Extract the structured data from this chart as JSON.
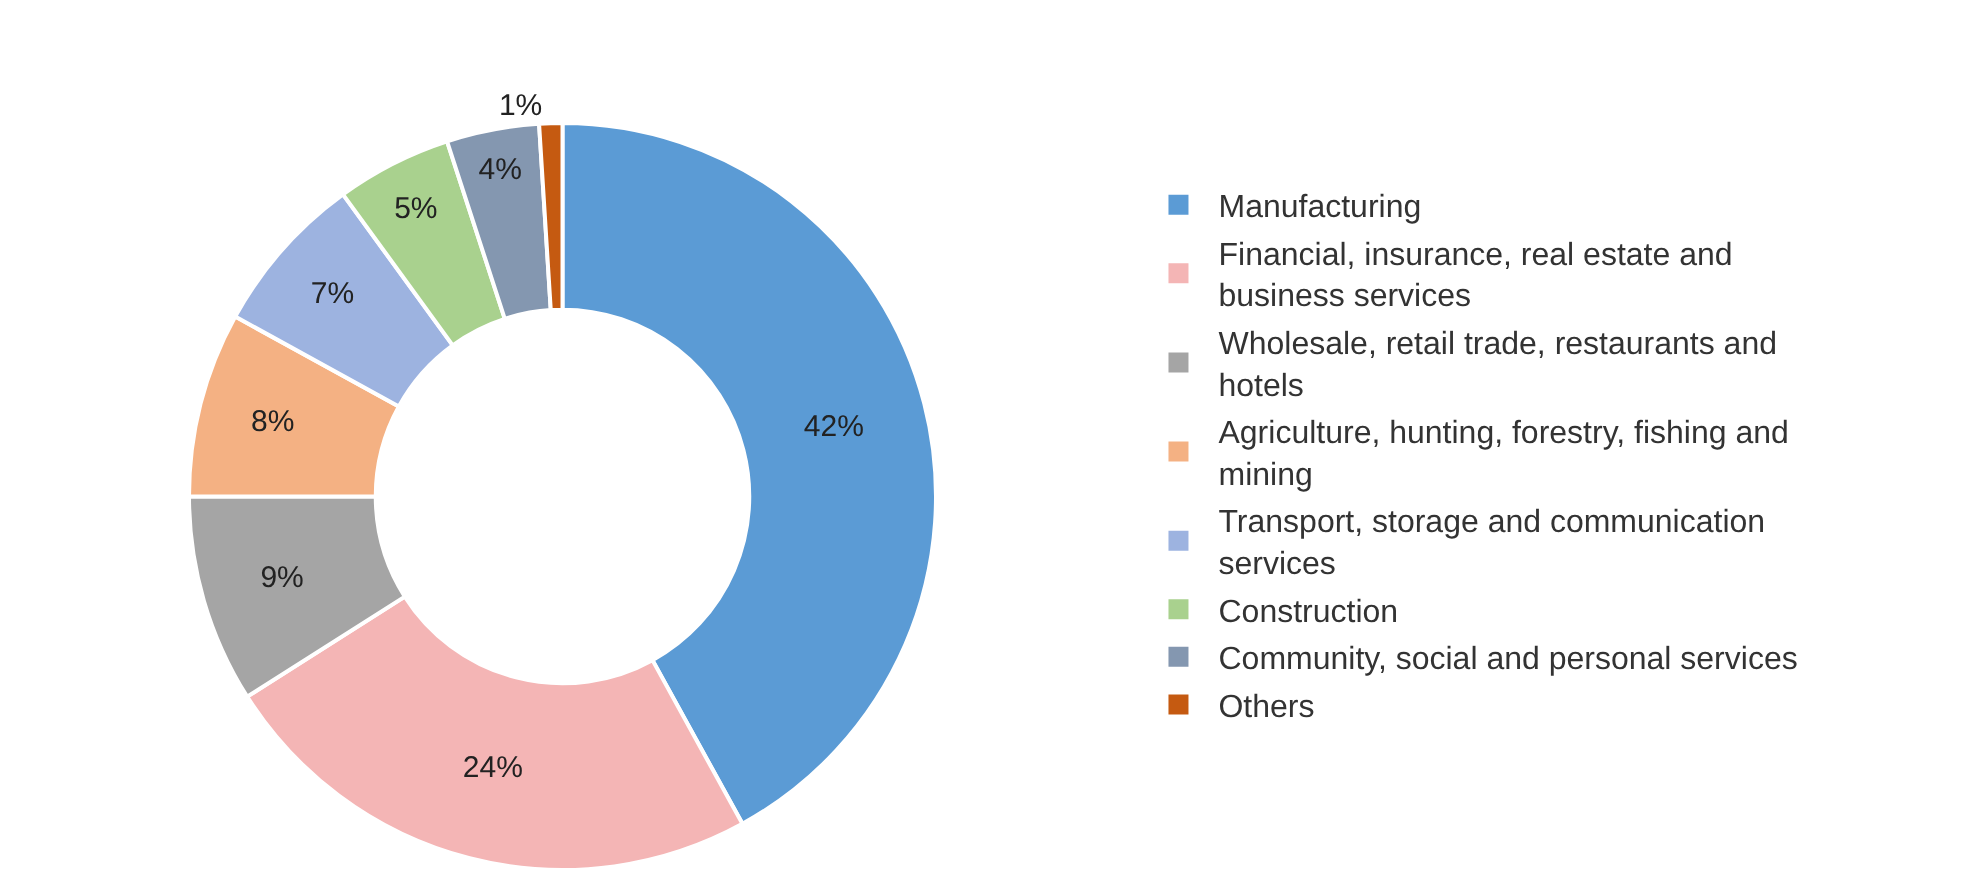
{
  "chart_data": {
    "type": "donut",
    "categories": [
      "Manufacturing",
      "Financial, insurance, real estate and business services",
      "Wholesale, retail trade, restaurants and hotels",
      "Agriculture, hunting, forestry, fishing and mining",
      "Transport, storage and communication services",
      "Construction",
      "Community, social and personal services",
      "Others"
    ],
    "values": [
      42,
      24,
      9,
      8,
      7,
      5,
      4,
      1
    ],
    "value_labels": [
      "42%",
      "24%",
      "9%",
      "8%",
      "7%",
      "5%",
      "4%",
      "1%"
    ],
    "colors": [
      "#5b9bd5",
      "#f4b5b5",
      "#a5a5a5",
      "#f4b183",
      "#9db3e0",
      "#a9d18e",
      "#8497b0",
      "#c55a11"
    ],
    "legend": "right"
  }
}
